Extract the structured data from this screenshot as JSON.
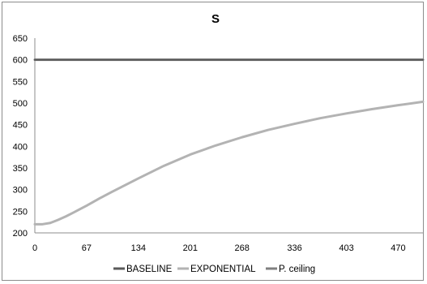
{
  "chart_data": {
    "type": "line",
    "title": "S",
    "xlabel": "",
    "ylabel": "",
    "xlim": [
      0,
      502
    ],
    "ylim": [
      200,
      650
    ],
    "x_ticks": [
      0,
      67,
      134,
      201,
      268,
      336,
      403,
      470
    ],
    "y_ticks": [
      200,
      250,
      300,
      350,
      400,
      450,
      500,
      550,
      600,
      650
    ],
    "grid": false,
    "legend_position": "bottom",
    "series": [
      {
        "name": "BASELINE",
        "color": "#595959",
        "x": [
          0,
          502
        ],
        "values": [
          600,
          600
        ]
      },
      {
        "name": "EXPONENTIAL",
        "color": "#b3b3b3",
        "x": [
          0,
          10,
          20,
          30,
          40,
          50,
          67,
          84,
          100,
          134,
          167,
          201,
          234,
          268,
          302,
          336,
          369,
          403,
          436,
          470,
          502
        ],
        "values": [
          220,
          220,
          223,
          230,
          238,
          247,
          263,
          280,
          295,
          326,
          355,
          381,
          402,
          421,
          438,
          452,
          465,
          476,
          486,
          495,
          503
        ]
      },
      {
        "name": "P. ceiling",
        "color": "#808080",
        "x": [
          0,
          502
        ],
        "values": [
          600,
          600
        ]
      }
    ]
  }
}
